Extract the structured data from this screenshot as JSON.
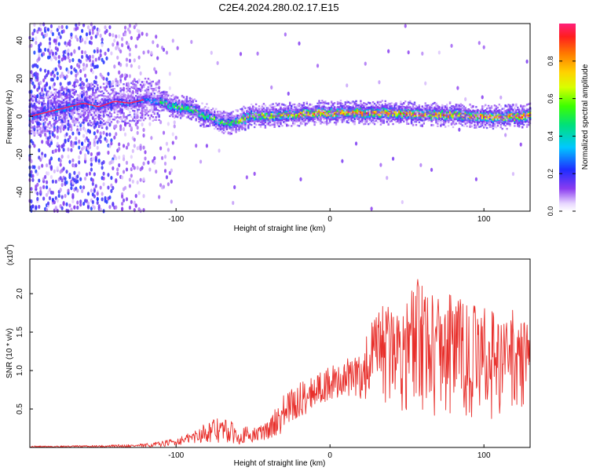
{
  "title": "C2E4.2024.280.02.17.E15",
  "chart_data": [
    {
      "type": "heatmap",
      "xlabel": "Height of straight line (km)",
      "ylabel": "Frequency (Hz)",
      "xlim": [
        -195,
        130
      ],
      "ylim": [
        -50,
        49
      ],
      "xticks": [
        -100,
        0,
        100
      ],
      "yticks": [
        -40,
        -20,
        0,
        20,
        40
      ],
      "colorbar": {
        "label": "Normalized spectral amplitude",
        "range": [
          0.0,
          1.0
        ],
        "ticks": [
          0.0,
          0.2,
          0.4,
          0.6,
          0.8
        ],
        "tick_labels": [
          "0.0",
          "0.2",
          "0.4",
          "0.6",
          "0.8"
        ]
      },
      "ridge": {
        "x": [
          -195,
          -180,
          -160,
          -150,
          -140,
          -130,
          -120,
          -110,
          -100,
          -90,
          -80,
          -70,
          -60,
          -50,
          -40,
          -30,
          -20,
          -10,
          0,
          20,
          40,
          60,
          80,
          100,
          120,
          130
        ],
        "y": [
          0,
          3,
          7,
          5,
          8,
          7,
          9,
          8,
          5,
          4,
          0,
          -3,
          -3,
          1,
          0,
          1,
          1,
          2,
          2,
          2,
          2,
          1,
          1,
          0,
          0,
          1
        ]
      }
    },
    {
      "type": "line",
      "xlabel": "Height of straight line (km)",
      "ylabel": "SNR (10 * v/v)",
      "scale_note": "(x10",
      "scale_exp": "4",
      "xlim": [
        -195,
        130
      ],
      "ylim": [
        0,
        2.45
      ],
      "xticks": [
        -100,
        0,
        100
      ],
      "yticks": [
        0.5,
        1.0,
        1.5,
        2.0
      ],
      "ytick_labels": [
        "0.5",
        "1.0",
        "1.5",
        "2.0"
      ],
      "color": "#e8302c",
      "envelope": {
        "x": [
          -195,
          -150,
          -120,
          -110,
          -100,
          -90,
          -80,
          -70,
          -60,
          -50,
          -40,
          -30,
          -20,
          -10,
          0,
          10,
          20,
          30,
          40,
          50,
          60,
          70,
          80,
          90,
          100,
          110,
          120,
          130
        ],
        "lower": [
          0.0,
          0.0,
          0.0,
          0.01,
          0.03,
          0.05,
          0.07,
          0.05,
          0.04,
          0.06,
          0.1,
          0.2,
          0.35,
          0.55,
          0.6,
          0.65,
          0.6,
          0.55,
          0.5,
          0.45,
          0.4,
          0.35,
          0.35,
          0.35,
          0.35,
          0.4,
          0.45,
          0.55
        ],
        "upper": [
          0.02,
          0.03,
          0.05,
          0.08,
          0.12,
          0.2,
          0.35,
          0.4,
          0.3,
          0.25,
          0.35,
          0.7,
          0.85,
          0.95,
          1.05,
          1.15,
          1.25,
          1.8,
          1.9,
          1.95,
          2.3,
          2.05,
          2.05,
          1.85,
          1.85,
          1.75,
          1.8,
          1.75
        ]
      }
    }
  ]
}
